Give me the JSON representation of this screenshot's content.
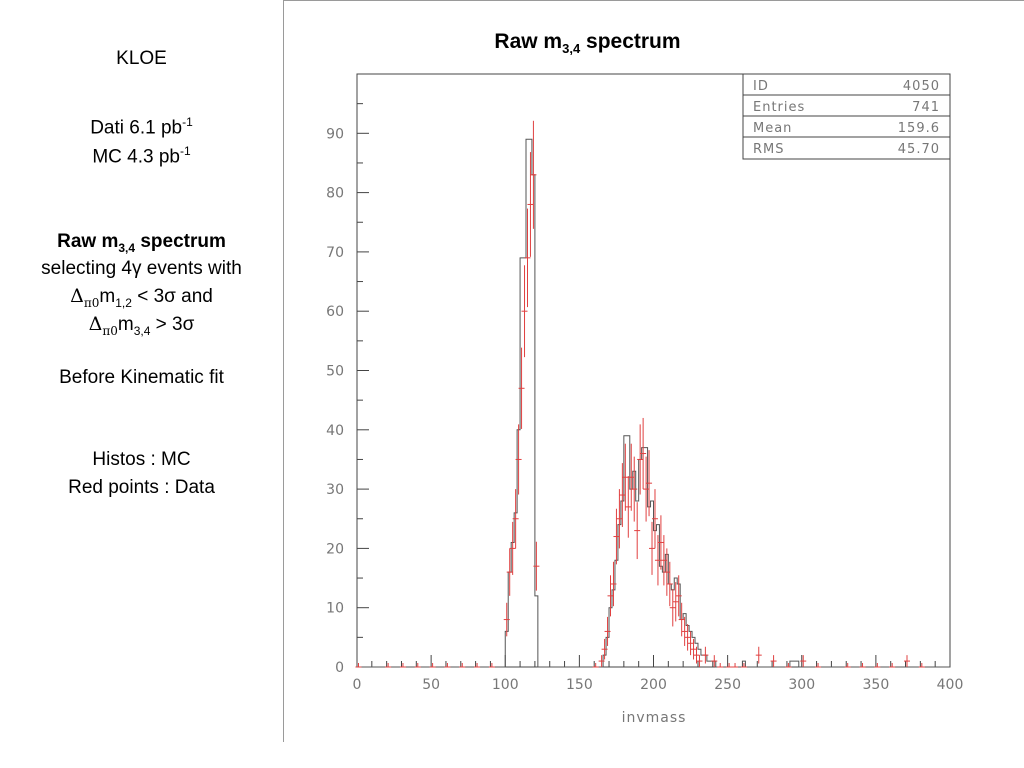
{
  "sidebar": {
    "experiment": "KLOE",
    "dati_prefix": "Dati 6.1 pb",
    "dati_exp": "-1",
    "mc_prefix": "MC 4.3 pb",
    "mc_exp": "-1",
    "heading_main": "Raw m",
    "heading_sub": "3,4",
    "heading_rest": " spectrum",
    "sel_line1": "selecting 4γ events with",
    "sel_line2_delta": "Δ",
    "sel_line2_pi": "π0",
    "sel_line2_m": "m",
    "sel_line2_sub": "1,2",
    "sel_line2_rest": " < 3σ and",
    "sel_line3_delta": "Δ",
    "sel_line3_pi": "π0",
    "sel_line3_m": "m",
    "sel_line3_sub": "3,4",
    "sel_line3_rest": " > 3σ",
    "fit_note": "Before Kinematic fit",
    "legend_mc": "Histos : MC",
    "legend_data": "Red points : Data"
  },
  "chart_data": {
    "type": "bar",
    "title_main": "Raw m",
    "title_sub": "3,4",
    "title_rest": " spectrum",
    "xlabel": "invmass",
    "ylabel": "",
    "xlim": [
      0,
      400
    ],
    "ylim": [
      0,
      100
    ],
    "xticks": [
      0,
      50,
      100,
      150,
      200,
      250,
      300,
      350,
      400
    ],
    "yticks": [
      0,
      10,
      20,
      30,
      40,
      50,
      60,
      70,
      80,
      90
    ],
    "grid": false,
    "stats": [
      {
        "label": "ID",
        "value": "4050"
      },
      {
        "label": "Entries",
        "value": "741"
      },
      {
        "label": "Mean",
        "value": "159.6"
      },
      {
        "label": "RMS",
        "value": "45.70"
      }
    ],
    "bin_width": 2,
    "mc_histogram": {
      "name": "Histos : MC",
      "color": "#555555",
      "bins": [
        [
          98,
          0
        ],
        [
          100,
          6
        ],
        [
          102,
          16
        ],
        [
          104,
          21
        ],
        [
          106,
          26
        ],
        [
          108,
          40
        ],
        [
          110,
          69
        ],
        [
          112,
          69
        ],
        [
          114,
          89
        ],
        [
          116,
          89
        ],
        [
          118,
          83
        ],
        [
          120,
          12
        ],
        [
          122,
          0
        ],
        [
          164,
          0
        ],
        [
          166,
          2
        ],
        [
          168,
          5
        ],
        [
          170,
          10
        ],
        [
          172,
          13
        ],
        [
          174,
          18
        ],
        [
          176,
          24
        ],
        [
          178,
          28
        ],
        [
          180,
          39
        ],
        [
          182,
          39
        ],
        [
          184,
          30
        ],
        [
          186,
          33
        ],
        [
          188,
          28
        ],
        [
          190,
          35
        ],
        [
          192,
          37
        ],
        [
          194,
          37
        ],
        [
          196,
          27
        ],
        [
          198,
          28
        ],
        [
          200,
          23
        ],
        [
          202,
          24
        ],
        [
          204,
          17
        ],
        [
          206,
          16
        ],
        [
          208,
          19
        ],
        [
          210,
          14
        ],
        [
          212,
          13
        ],
        [
          214,
          15
        ],
        [
          216,
          14
        ],
        [
          218,
          8
        ],
        [
          220,
          9
        ],
        [
          222,
          7
        ],
        [
          224,
          6
        ],
        [
          226,
          5
        ],
        [
          228,
          4
        ],
        [
          230,
          3
        ],
        [
          232,
          2
        ],
        [
          234,
          2
        ],
        [
          236,
          1
        ],
        [
          238,
          1
        ],
        [
          240,
          1
        ],
        [
          242,
          0
        ],
        [
          258,
          0
        ],
        [
          260,
          1
        ],
        [
          262,
          0
        ],
        [
          290,
          0
        ],
        [
          292,
          1
        ],
        [
          296,
          1
        ],
        [
          298,
          0
        ]
      ]
    },
    "data_points": {
      "name": "Red points : Data",
      "color": "#e04040",
      "points": [
        [
          1,
          0
        ],
        [
          21,
          0
        ],
        [
          31,
          0
        ],
        [
          41,
          0
        ],
        [
          51,
          0
        ],
        [
          61,
          0
        ],
        [
          71,
          0
        ],
        [
          81,
          0
        ],
        [
          91,
          0
        ],
        [
          101,
          8
        ],
        [
          103,
          16
        ],
        [
          105,
          20
        ],
        [
          107,
          25
        ],
        [
          109,
          35
        ],
        [
          111,
          47
        ],
        [
          113,
          60
        ],
        [
          115,
          69
        ],
        [
          117,
          78
        ],
        [
          119,
          83
        ],
        [
          121,
          17
        ],
        [
          161,
          0
        ],
        [
          165,
          1
        ],
        [
          167,
          3
        ],
        [
          169,
          6
        ],
        [
          171,
          12
        ],
        [
          173,
          14
        ],
        [
          175,
          22
        ],
        [
          177,
          25
        ],
        [
          179,
          29
        ],
        [
          181,
          32
        ],
        [
          183,
          27
        ],
        [
          185,
          32
        ],
        [
          187,
          30
        ],
        [
          189,
          23
        ],
        [
          191,
          35
        ],
        [
          193,
          36
        ],
        [
          195,
          30
        ],
        [
          197,
          31
        ],
        [
          199,
          20
        ],
        [
          201,
          25
        ],
        [
          203,
          18
        ],
        [
          205,
          21
        ],
        [
          207,
          18
        ],
        [
          209,
          16
        ],
        [
          211,
          14
        ],
        [
          213,
          10
        ],
        [
          215,
          11
        ],
        [
          217,
          12
        ],
        [
          219,
          8
        ],
        [
          221,
          6
        ],
        [
          223,
          5
        ],
        [
          225,
          4
        ],
        [
          227,
          3
        ],
        [
          229,
          2
        ],
        [
          231,
          1
        ],
        [
          235,
          2
        ],
        [
          241,
          1
        ],
        [
          245,
          0
        ],
        [
          251,
          0
        ],
        [
          255,
          0
        ],
        [
          261,
          0
        ],
        [
          271,
          2
        ],
        [
          281,
          1
        ],
        [
          291,
          0
        ],
        [
          301,
          1
        ],
        [
          311,
          0
        ],
        [
          331,
          0
        ],
        [
          341,
          0
        ],
        [
          351,
          0
        ],
        [
          361,
          0
        ],
        [
          371,
          1
        ],
        [
          381,
          0
        ]
      ]
    }
  }
}
